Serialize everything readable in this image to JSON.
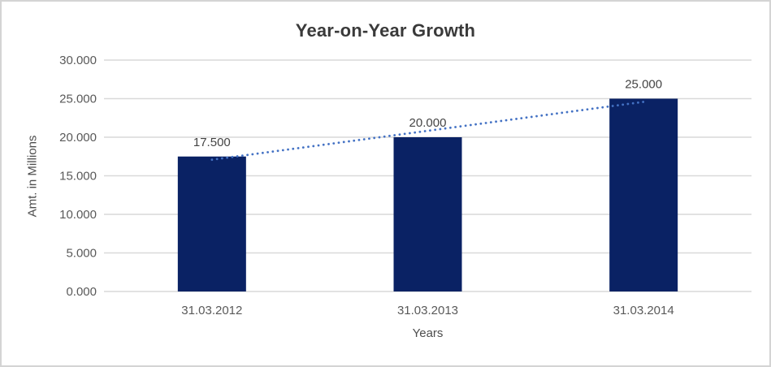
{
  "chart_data": {
    "type": "bar",
    "title": "Year-on-Year Growth",
    "xlabel": "Years",
    "ylabel": "Amt. in Millions",
    "categories": [
      "31.03.2012",
      "31.03.2013",
      "31.03.2014"
    ],
    "values": [
      17500,
      20000,
      25000
    ],
    "value_labels": [
      "17.500",
      "20.000",
      "25.000"
    ],
    "ylim": [
      0,
      30000
    ],
    "ytick_values": [
      0,
      5000,
      10000,
      15000,
      20000,
      25000,
      30000
    ],
    "ytick_labels": [
      "0.000",
      "5.000",
      "10.000",
      "15.000",
      "20.000",
      "25.000",
      "30.000"
    ],
    "grid": true,
    "legend": "none",
    "trendline": {
      "type": "linear",
      "style": "dotted"
    },
    "colors": {
      "bar": "#0a2264",
      "trendline": "#4472c4",
      "gridline": "#d9d9d9",
      "title_text": "#3a3a3a",
      "axis_text": "#595959",
      "label_text": "#444444",
      "frame_border": "#d4d4d4",
      "background": "#ffffff"
    }
  }
}
